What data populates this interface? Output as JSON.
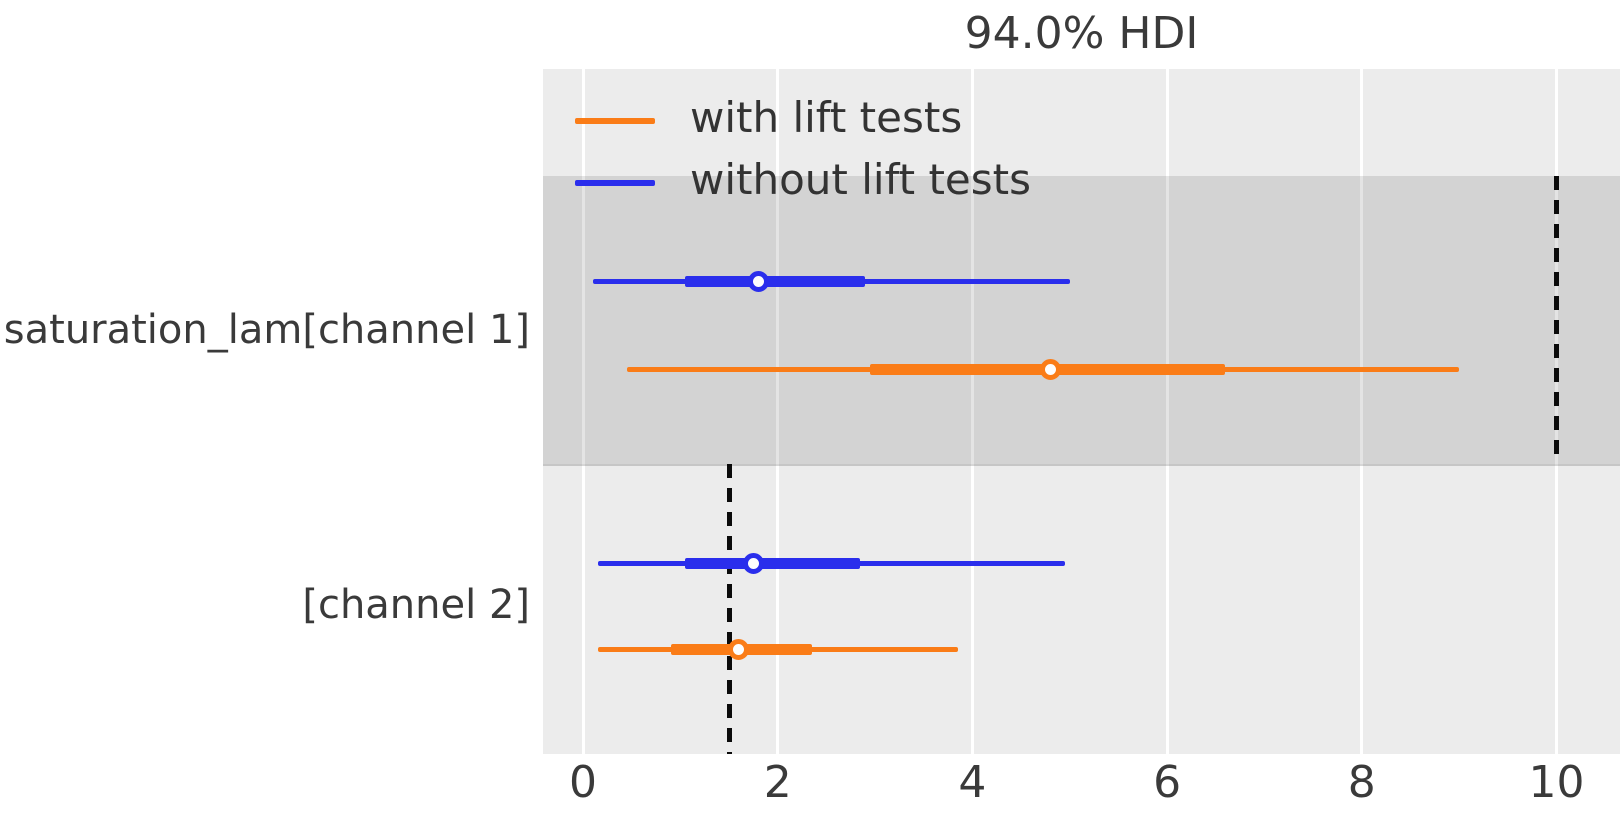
{
  "figure": {
    "title": "94.0% HDI"
  },
  "chart_data": {
    "type": "forest",
    "title": "94.0% HDI",
    "subtitle": "",
    "xlabel": "",
    "ylabel": "",
    "xlim": [
      -0.41,
      10.65
    ],
    "xticks": [
      0,
      2,
      4,
      6,
      8,
      10
    ],
    "grid": true,
    "legend": {
      "position": "upper-left",
      "entries": [
        {
          "label": "with lift tests",
          "color": "#fa7c17"
        },
        {
          "label": "without lift tests",
          "color": "#2a2eec"
        }
      ]
    },
    "parameters": [
      {
        "label": "saturation_lam[channel 1]",
        "shaded_band": true,
        "reference_value": 10.0,
        "intervals": [
          {
            "series": "without lift tests",
            "color": "#2a2eec",
            "hdi_94": [
              0.1,
              5.0
            ],
            "hdi_inner": [
              1.05,
              2.9
            ],
            "point": 1.8
          },
          {
            "series": "with lift tests",
            "color": "#fa7c17",
            "hdi_94": [
              0.45,
              9.0
            ],
            "hdi_inner": [
              2.95,
              6.6
            ],
            "point": 4.8
          }
        ]
      },
      {
        "label": "[channel 2]",
        "shaded_band": false,
        "reference_value": 1.5,
        "intervals": [
          {
            "series": "without lift tests",
            "color": "#2a2eec",
            "hdi_94": [
              0.15,
              4.95
            ],
            "hdi_inner": [
              1.05,
              2.85
            ],
            "point": 1.75
          },
          {
            "series": "with lift tests",
            "color": "#fa7c17",
            "hdi_94": [
              0.15,
              3.85
            ],
            "hdi_inner": [
              0.9,
              2.35
            ],
            "point": 1.6
          }
        ]
      }
    ],
    "colors": {
      "with_lift_tests": "#fa7c17",
      "without_lift_tests": "#2a2eec",
      "plot_background": "#ececec",
      "shaded_band": "#d4d4d4",
      "gridline": "#ffffff",
      "reference_line": "#0b0b0b",
      "text": "#3a3a3a"
    }
  }
}
